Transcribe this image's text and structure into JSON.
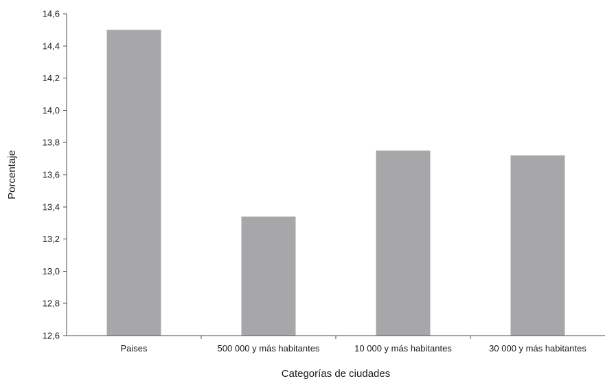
{
  "chart_data": {
    "type": "bar",
    "title": "",
    "xlabel": "Categorías de ciudades",
    "ylabel": "Porcentaje",
    "categories": [
      "Paises",
      "500 000 y más habitantes",
      "10 000 y más habitantes",
      "30 000 y más habitantes"
    ],
    "values": [
      14.5,
      13.34,
      13.75,
      13.72
    ],
    "ylim": [
      12.6,
      14.6
    ],
    "yticks": [
      12.6,
      12.8,
      13.0,
      13.2,
      13.4,
      13.6,
      13.8,
      14.0,
      14.2,
      14.4,
      14.6
    ],
    "ytick_labels": [
      "12,6",
      "12,8",
      "13,0",
      "13,2",
      "13,4",
      "13,6",
      "13,8",
      "14,0",
      "14,2",
      "14,4",
      "14,6"
    ],
    "grid": false,
    "legend": "none",
    "bar_color": "#a7a7aa",
    "axis_color": "#4d4d4d"
  }
}
